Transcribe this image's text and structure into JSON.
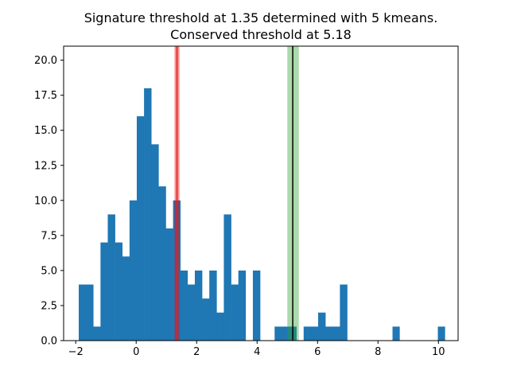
{
  "chart_data": {
    "type": "bar",
    "title_lines": [
      "Signature threshold at 1.35 determined with 5 kmeans.",
      "Conserved threshold at 5.18"
    ],
    "xlabel": "",
    "ylabel": "",
    "xlim": [
      -2.4,
      10.65
    ],
    "ylim": [
      0,
      21
    ],
    "x_ticks": [
      -2,
      0,
      2,
      4,
      6,
      8,
      10
    ],
    "x_tick_labels": [
      "−2",
      "0",
      "2",
      "4",
      "6",
      "8",
      "10"
    ],
    "y_ticks": [
      0,
      2.5,
      5,
      7.5,
      10,
      12.5,
      15,
      17.5,
      20
    ],
    "y_tick_labels": [
      "0.0",
      "2.5",
      "5.0",
      "7.5",
      "10.0",
      "12.5",
      "15.0",
      "17.5",
      "20.0"
    ],
    "grid": false,
    "bar_color": "#1f77b4",
    "bin_start": -1.9,
    "bin_width": 0.24,
    "counts": [
      4,
      4,
      1,
      7,
      9,
      7,
      6,
      10,
      16,
      18,
      14,
      11,
      8,
      10,
      5,
      4,
      5,
      3,
      5,
      2,
      9,
      4,
      5,
      0,
      5,
      0,
      0,
      1,
      1,
      1,
      0,
      1,
      1,
      2,
      1,
      1,
      4,
      0,
      0,
      0,
      0,
      0,
      0,
      0,
      0,
      0,
      0,
      0,
      0,
      0,
      0,
      0
    ],
    "extra_bars": [
      {
        "x": 8.48,
        "value": 1
      },
      {
        "x": 9.98,
        "value": 1
      }
    ],
    "thresholds": [
      {
        "value": 1.35,
        "band": [
          1.27,
          1.43
        ],
        "line_color": "#d62728",
        "band_color": "#ff0000",
        "band_opacity": 0.45
      },
      {
        "value": 5.18,
        "band": [
          5.0,
          5.38
        ],
        "line_color": "#000000",
        "band_color": "#2ca02c",
        "band_opacity": 0.4
      }
    ]
  }
}
